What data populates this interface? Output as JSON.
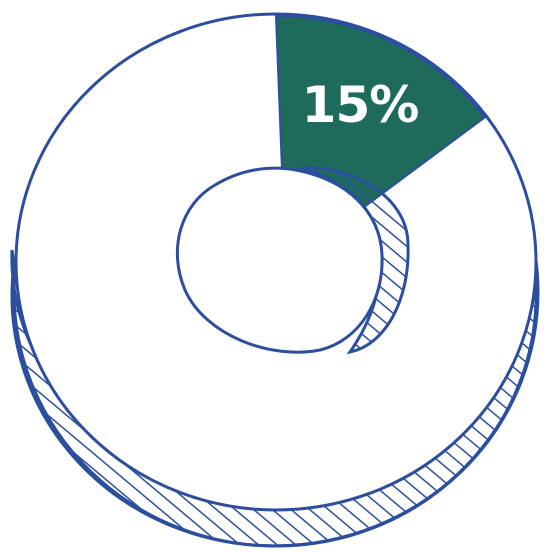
{
  "chart_data": {
    "type": "pie",
    "style": "hand-drawn 3D donut",
    "slices": [
      {
        "value": 15,
        "label": "15%",
        "highlighted": true
      },
      {
        "value": 85,
        "label": "",
        "highlighted": false
      }
    ]
  },
  "colors": {
    "outline": "#2b4f9e",
    "highlight": "#1e6b5c",
    "hatch": "#2b4f9e",
    "background": "#ffffff"
  }
}
